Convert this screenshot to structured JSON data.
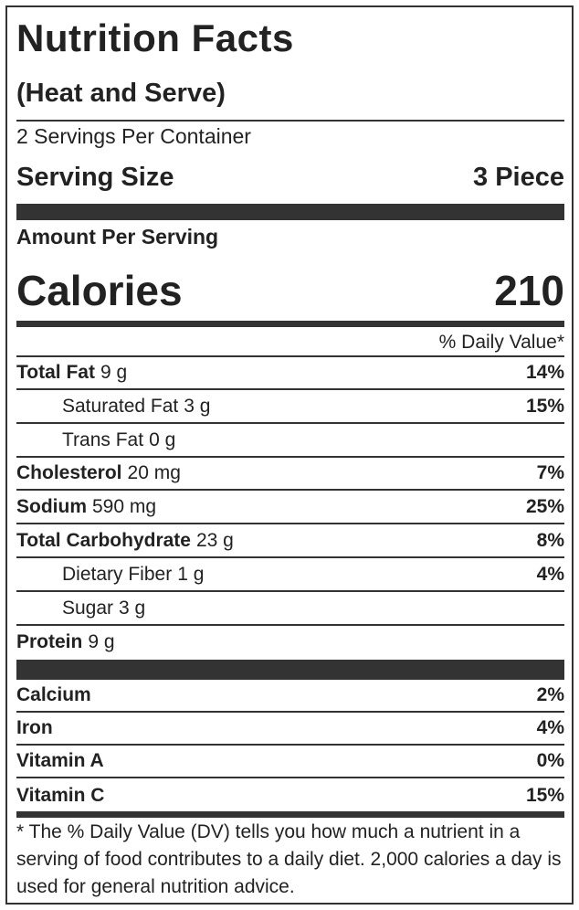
{
  "header": {
    "title": "Nutrition Facts",
    "subtitle": "(Heat and Serve)"
  },
  "servings": {
    "per_container": "2 Servings Per Container",
    "size_label": "Serving Size",
    "size_value": "3 Piece"
  },
  "amount_per_serving": "Amount Per Serving",
  "calories": {
    "label": "Calories",
    "value": "210"
  },
  "daily_value_header": "% Daily Value*",
  "nutrients": [
    {
      "name": "Total Fat",
      "amount": "9 g",
      "dv": "14%"
    },
    {
      "name": "Saturated Fat",
      "amount": "3 g",
      "dv": "15%"
    },
    {
      "name": "Trans Fat",
      "amount": "0 g"
    },
    {
      "name": "Cholesterol",
      "amount": "20 mg",
      "dv": "7%"
    },
    {
      "name": "Sodium",
      "amount": "590 mg",
      "dv": "25%"
    },
    {
      "name": "Total Carbohydrate",
      "amount": "23 g",
      "dv": "8%"
    },
    {
      "name": "Dietary Fiber",
      "amount": "1 g",
      "dv": "4%"
    },
    {
      "name": "Sugar",
      "amount": "3 g"
    },
    {
      "name": "Protein",
      "amount": "9 g"
    }
  ],
  "vitamins": [
    {
      "name": "Calcium",
      "dv": "2%"
    },
    {
      "name": "Iron",
      "dv": "4%"
    },
    {
      "name": "Vitamin A",
      "dv": "0%"
    },
    {
      "name": "Vitamin C",
      "dv": "15%"
    }
  ],
  "footnote": "* The % Daily Value (DV) tells you how much a nutrient in a serving of food contributes to a daily diet. 2,000 calories a day is used for general nutrition advice."
}
